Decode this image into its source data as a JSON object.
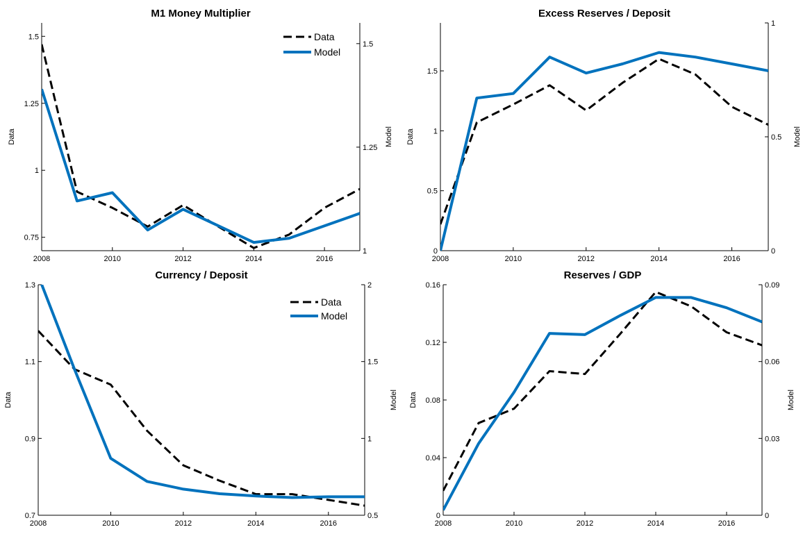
{
  "colors": {
    "data": "#000000",
    "model": "#0072BD"
  },
  "chart_data": [
    {
      "type": "line",
      "title": "M1 Money Multiplier",
      "ylabel_left": "Data",
      "ylabel_right": "Model",
      "xlim": [
        2008,
        2017
      ],
      "ylim_left": [
        0.7,
        1.55
      ],
      "ylim_right": [
        1.0,
        1.55
      ],
      "xticks": [
        2008,
        2010,
        2012,
        2014,
        2016
      ],
      "xtick_labels": [
        "2008",
        "2010",
        "2012",
        "2014",
        "2016"
      ],
      "yticks_left": [
        0.75,
        1,
        1.25,
        1.5
      ],
      "ytick_labels_left": [
        "0.75",
        "1",
        "1.25",
        "1.5"
      ],
      "yticks_right": [
        1,
        1.25,
        1.5
      ],
      "ytick_labels_right": [
        "1",
        "1.25",
        "1.5"
      ],
      "legend": {
        "entries": [
          "Data",
          "Model"
        ],
        "position": "top-right"
      },
      "series": [
        {
          "name": "Data",
          "axis": "left",
          "style": "dashed",
          "x": [
            2008,
            2009,
            2010,
            2011,
            2012,
            2013,
            2014,
            2015,
            2016,
            2017
          ],
          "values": [
            1.47,
            0.92,
            0.86,
            0.79,
            0.87,
            0.79,
            0.71,
            0.76,
            0.86,
            0.93
          ]
        },
        {
          "name": "Model",
          "axis": "right",
          "style": "solid",
          "x": [
            2008,
            2009,
            2010,
            2011,
            2012,
            2013,
            2014,
            2015,
            2016,
            2017
          ],
          "values": [
            1.39,
            1.12,
            1.14,
            1.05,
            1.1,
            1.06,
            1.02,
            1.03,
            1.06,
            1.09
          ]
        }
      ]
    },
    {
      "type": "line",
      "title": "Excess Reserves / Deposit",
      "ylabel_left": "Data",
      "ylabel_right": "Model",
      "xlim": [
        2008,
        2017
      ],
      "ylim_left": [
        0,
        1.9
      ],
      "ylim_right": [
        0,
        1
      ],
      "xticks": [
        2008,
        2010,
        2012,
        2014,
        2016
      ],
      "xtick_labels": [
        "2008",
        "2010",
        "2012",
        "2014",
        "2016"
      ],
      "yticks_left": [
        0,
        0.5,
        1,
        1.5
      ],
      "ytick_labels_left": [
        "0",
        "0.5",
        "1",
        "1.5"
      ],
      "yticks_right": [
        0,
        0.5,
        1
      ],
      "ytick_labels_right": [
        "0",
        "0.5",
        "1"
      ],
      "legend": null,
      "series": [
        {
          "name": "Data",
          "axis": "left",
          "style": "dashed",
          "x": [
            2008,
            2009,
            2010,
            2011,
            2012,
            2013,
            2014,
            2015,
            2016,
            2017
          ],
          "values": [
            0.22,
            1.07,
            1.22,
            1.38,
            1.17,
            1.4,
            1.6,
            1.47,
            1.2,
            1.05
          ]
        },
        {
          "name": "Model",
          "axis": "right",
          "style": "solid",
          "x": [
            2008,
            2009,
            2010,
            2011,
            2012,
            2013,
            2014,
            2015,
            2016,
            2017
          ],
          "values": [
            0.0,
            0.67,
            0.69,
            0.85,
            0.78,
            0.82,
            0.87,
            0.85,
            0.82,
            0.79
          ]
        }
      ]
    },
    {
      "type": "line",
      "title": "Currency / Deposit",
      "ylabel_left": "Data",
      "ylabel_right": "Model",
      "xlim": [
        2008,
        2017
      ],
      "ylim_left": [
        0.7,
        1.3
      ],
      "ylim_right": [
        0.5,
        2.0
      ],
      "xticks": [
        2008,
        2010,
        2012,
        2014,
        2016
      ],
      "xtick_labels": [
        "2008",
        "2010",
        "2012",
        "2014",
        "2016"
      ],
      "yticks_left": [
        0.7,
        0.9,
        1.1,
        1.3
      ],
      "ytick_labels_left": [
        "0.7",
        "0.9",
        "1.1",
        "1.3"
      ],
      "yticks_right": [
        0.5,
        1,
        1.5,
        2
      ],
      "ytick_labels_right": [
        "0.5",
        "1",
        "1.5",
        "2"
      ],
      "legend": {
        "entries": [
          "Data",
          "Model"
        ],
        "position": "top-right"
      },
      "series": [
        {
          "name": "Data",
          "axis": "left",
          "style": "dashed",
          "x": [
            2008,
            2009,
            2010,
            2011,
            2012,
            2013,
            2014,
            2015,
            2016,
            2017
          ],
          "values": [
            1.18,
            1.08,
            1.04,
            0.92,
            0.83,
            0.79,
            0.755,
            0.755,
            0.74,
            0.725
          ]
        },
        {
          "name": "Model",
          "axis": "right",
          "style": "solid",
          "x": [
            2008,
            2009,
            2010,
            2011,
            2012,
            2013,
            2014,
            2015,
            2016,
            2017
          ],
          "values": [
            2.06,
            1.45,
            0.87,
            0.72,
            0.67,
            0.64,
            0.625,
            0.615,
            0.62,
            0.62
          ]
        }
      ]
    },
    {
      "type": "line",
      "title": "Reserves / GDP",
      "ylabel_left": "Data",
      "ylabel_right": "Model",
      "xlim": [
        2008,
        2017
      ],
      "ylim_left": [
        0,
        0.16
      ],
      "ylim_right": [
        0,
        0.09
      ],
      "xticks": [
        2008,
        2010,
        2012,
        2014,
        2016
      ],
      "xtick_labels": [
        "2008",
        "2010",
        "2012",
        "2014",
        "2016"
      ],
      "yticks_left": [
        0,
        0.04,
        0.08,
        0.12,
        0.16
      ],
      "ytick_labels_left": [
        "0",
        "0.04",
        "0.08",
        "0.12",
        "0.16"
      ],
      "yticks_right": [
        0,
        0.03,
        0.06,
        0.09
      ],
      "ytick_labels_right": [
        "0",
        "0.03",
        "0.06",
        "0.09"
      ],
      "legend": null,
      "series": [
        {
          "name": "Data",
          "axis": "left",
          "style": "dashed",
          "x": [
            2008,
            2009,
            2010,
            2011,
            2012,
            2013,
            2014,
            2015,
            2016,
            2017
          ],
          "values": [
            0.017,
            0.064,
            0.074,
            0.1,
            0.098,
            0.126,
            0.155,
            0.145,
            0.127,
            0.118
          ]
        },
        {
          "name": "Model",
          "axis": "right",
          "style": "solid",
          "x": [
            2008,
            2009,
            2010,
            2011,
            2012,
            2013,
            2014,
            2015,
            2016,
            2017
          ],
          "values": [
            0.002,
            0.028,
            0.048,
            0.071,
            0.0705,
            0.078,
            0.085,
            0.085,
            0.081,
            0.0755
          ]
        }
      ]
    }
  ]
}
